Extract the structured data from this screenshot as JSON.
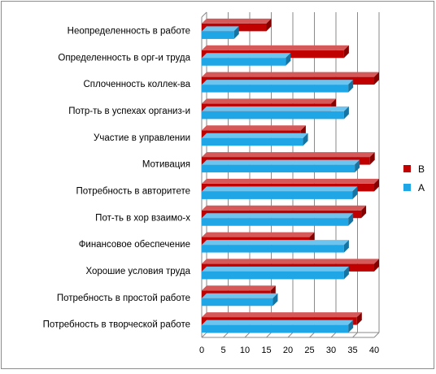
{
  "chart_data": {
    "type": "bar",
    "orientation": "horizontal",
    "three_d": true,
    "categories": [
      "Неопределенность в работе",
      "Определенность в орг-и труда",
      "Сплоченность коллек-ва",
      "Потр-ть в успехах организ-и",
      "Участие в управлении",
      "Мотивация",
      "Потребность в авторитете",
      "Пот-ть в хор взаимо-х",
      "Финансовое обеспечение",
      "Хорошие условия труда",
      "Потребность в простой работе",
      "Потребность в творческой работе"
    ],
    "series": [
      {
        "name": "В",
        "color": "#c00000",
        "values": [
          15,
          33,
          40,
          30,
          23,
          39,
          40,
          37,
          25,
          40,
          16,
          36
        ]
      },
      {
        "name": "А",
        "color": "#1ea6e6",
        "values": [
          7.5,
          19.5,
          34,
          33,
          23.5,
          35.5,
          35,
          34,
          33,
          33,
          16.5,
          34
        ]
      }
    ],
    "x_ticks": [
      0,
      5,
      10,
      15,
      20,
      25,
      30,
      35,
      40
    ],
    "xlim": [
      0,
      40
    ],
    "grid": true,
    "legend_position": "right"
  }
}
